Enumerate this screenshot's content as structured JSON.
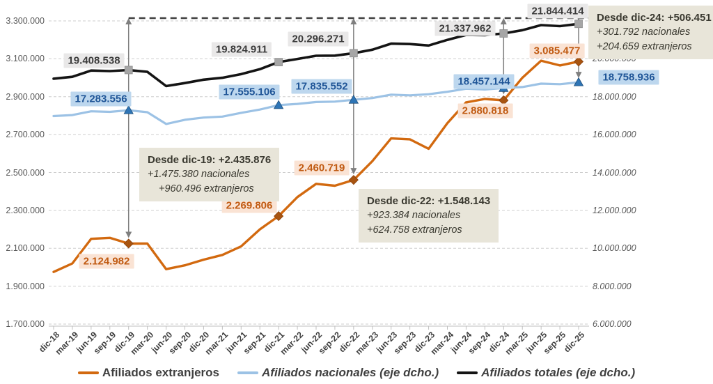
{
  "chart_data": {
    "type": "line",
    "title": "",
    "x_labels": [
      "dic-18",
      "mar-19",
      "jun-19",
      "sep-19",
      "dic-19",
      "mar-20",
      "jun-20",
      "sep-20",
      "dic-20",
      "mar-21",
      "jun-21",
      "sep-21",
      "dic-21",
      "mar-22",
      "jun-22",
      "sep-22",
      "dic-22",
      "mar-23",
      "jun-23",
      "sep-23",
      "dic-23",
      "mar-24",
      "jun-24",
      "sep-24",
      "dic-24",
      "mar-25",
      "jun-25",
      "sep-25",
      "dic-25"
    ],
    "left_axis": {
      "min": 1700000,
      "max": 3300000,
      "tick_values": [
        3300000,
        3100000,
        2900000,
        2700000,
        2500000,
        2300000,
        2100000,
        1900000,
        1700000
      ],
      "tick_labels": [
        "3.300.000",
        "3.100.000",
        "2.900.000",
        "2.700.000",
        "2.500.000",
        "2.300.000",
        "2.100.000",
        "1.900.000",
        "1.700.000"
      ]
    },
    "right_axis": {
      "min": 6000000,
      "max": 22000000,
      "tick_values": [
        20000000,
        18000000,
        16000000,
        14000000,
        12000000,
        10000000,
        8000000,
        6000000
      ],
      "tick_labels": [
        "20.000.000",
        "18.000.000",
        "16.000.000",
        "14.000.000",
        "12.000.000",
        "10.000.000",
        "8.000.000",
        "6.000.000"
      ]
    },
    "grid": true,
    "grid_color": "#cdcdcd",
    "arrow_color": "#7f7f7f",
    "reference_line": {
      "axis": "right",
      "value": 21844414,
      "from_x": "dic-19",
      "color": "#3f3f3f",
      "style": "dashed"
    },
    "series": [
      {
        "name": "Afiliados extranjeros",
        "axis": "left",
        "color": "#d2690f",
        "marker": "diamond",
        "marker_color": "#a85410",
        "values": [
          1975000,
          2020000,
          2150000,
          2155000,
          2124982,
          2125000,
          1990000,
          2010000,
          2040000,
          2065000,
          2110000,
          2200000,
          2269806,
          2370000,
          2440000,
          2430000,
          2460719,
          2560000,
          2680000,
          2675000,
          2625000,
          2760000,
          2870000,
          2888000,
          2880818,
          3000000,
          3090000,
          3065000,
          3085477
        ]
      },
      {
        "name": "Afiliados nacionales (eje dcho.)",
        "axis": "right",
        "color": "#9cc2e5",
        "marker": "triangle",
        "marker_color": "#2e75b6",
        "values": [
          16980000,
          17030000,
          17230000,
          17200000,
          17283556,
          17180000,
          16560000,
          16780000,
          16900000,
          16950000,
          17150000,
          17320000,
          17555106,
          17620000,
          17720000,
          17740000,
          17835552,
          17930000,
          18110000,
          18070000,
          18130000,
          18260000,
          18420000,
          18380000,
          18457144,
          18510000,
          18690000,
          18660000,
          18758936
        ]
      },
      {
        "name": "Afiliados totales (eje dcho.)",
        "axis": "right",
        "color": "#141414",
        "marker": "square",
        "marker_color": "#a6a6a6",
        "values": [
          18950000,
          19050000,
          19380000,
          19350000,
          19408538,
          19310000,
          18560000,
          18720000,
          18900000,
          19000000,
          19190000,
          19450000,
          19824911,
          19990000,
          20160000,
          20170000,
          20296271,
          20480000,
          20800000,
          20780000,
          20700000,
          21000000,
          21260000,
          21250000,
          21337962,
          21510000,
          21780000,
          21725000,
          21844414
        ]
      }
    ],
    "marker_x": [
      "dic-19",
      "dic-21",
      "dic-22",
      "dic-24",
      "dic-25"
    ],
    "point_labels": [
      {
        "series": 2,
        "x": "dic-19",
        "text": "19.408.538"
      },
      {
        "series": 2,
        "x": "dic-21",
        "text": "19.824.911"
      },
      {
        "series": 2,
        "x": "dic-22",
        "text": "20.296.271"
      },
      {
        "series": 2,
        "x": "dic-24",
        "text": "21.337.962"
      },
      {
        "series": 2,
        "x": "dic-25",
        "text": "21.844.414"
      },
      {
        "series": 1,
        "x": "dic-19",
        "text": "17.283.556"
      },
      {
        "series": 1,
        "x": "dic-21",
        "text": "17.555.106"
      },
      {
        "series": 1,
        "x": "dic-22",
        "text": "17.835.552"
      },
      {
        "series": 1,
        "x": "dic-24",
        "text": "18.457.144"
      },
      {
        "series": 1,
        "x": "dic-25",
        "text": "18.758.936"
      },
      {
        "series": 0,
        "x": "dic-19",
        "text": "2.124.982"
      },
      {
        "series": 0,
        "x": "dic-21",
        "text": "2.269.806"
      },
      {
        "series": 0,
        "x": "dic-22",
        "text": "2.460.719"
      },
      {
        "series": 0,
        "x": "dic-24",
        "text": "2.880.818"
      },
      {
        "series": 0,
        "x": "dic-25",
        "text": "3.085.477"
      }
    ],
    "callouts": [
      {
        "title": "Desde dic-19: +2.435.876",
        "lines": [
          "+1.475.380 nacionales",
          "+960.496 extranjeros"
        ]
      },
      {
        "title": "Desde dic-22: +1.548.143",
        "lines": [
          "+923.384 nacionales",
          "+624.758 extranjeros"
        ]
      },
      {
        "title": "Desde dic-24: +506.451",
        "lines": [
          "+301.792 nacionales",
          "+204.659 extranjeros"
        ]
      }
    ],
    "arrows": [
      {
        "x": "dic-19",
        "from": "reference_line",
        "to_series": 0
      },
      {
        "x": "dic-22",
        "from": "reference_line",
        "to_series": 0
      },
      {
        "x": "dic-24",
        "from": "reference_line",
        "to_series": 1
      },
      {
        "x": "dic-25",
        "from": "reference_line",
        "to_series": 1
      }
    ],
    "legend_position": "bottom"
  },
  "legend": {
    "items": [
      {
        "label": "Afiliados extranjeros",
        "color": "#d2690f",
        "italic": false
      },
      {
        "label": "Afiliados nacionales (eje dcho.)",
        "color": "#9cc2e5",
        "italic": true
      },
      {
        "label": "Afiliados totales (eje dcho.)",
        "color": "#141414",
        "italic": true
      }
    ]
  }
}
